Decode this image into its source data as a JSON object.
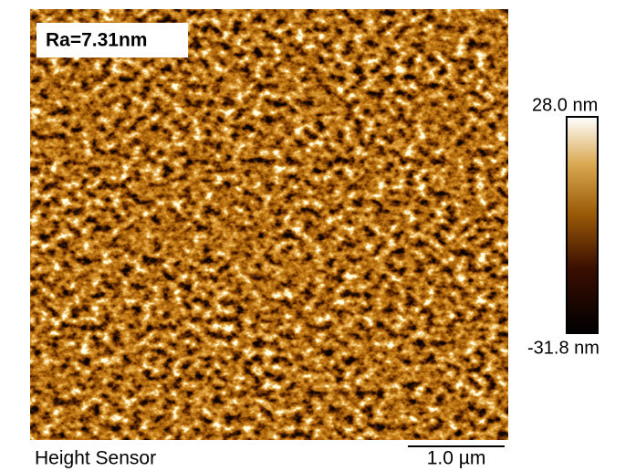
{
  "image": {
    "roughness_label": "Ra=7.31nm",
    "scale_max": "28.0 nm",
    "scale_min": "-31.8 nm",
    "channel": "Height Sensor",
    "scale_bar": "1.0 µm"
  }
}
